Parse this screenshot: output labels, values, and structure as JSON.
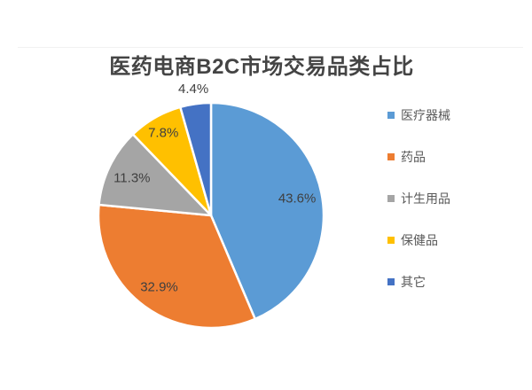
{
  "title": {
    "text": "医药电商B2C市场交易品类占比",
    "color": "#444444"
  },
  "chart_data": {
    "type": "pie",
    "title": "医药电商B2C市场交易品类占比",
    "legend_position": "right",
    "start_angle_deg": 0,
    "direction": "clockwise",
    "categories": [
      "医疗器械",
      "药品",
      "计生用品",
      "保健品",
      "其它"
    ],
    "values": [
      43.6,
      32.9,
      11.3,
      7.8,
      4.4
    ],
    "slices": [
      {
        "label": "医疗器械",
        "value": 43.6,
        "display": "43.6%",
        "color": "#5B9BD5"
      },
      {
        "label": "药品",
        "value": 32.9,
        "display": "32.9%",
        "color": "#ED7D31"
      },
      {
        "label": "计生用品",
        "value": 11.3,
        "display": "11.3%",
        "color": "#A5A5A5"
      },
      {
        "label": "保健品",
        "value": 7.8,
        "display": "7.8%",
        "color": "#FFC000"
      },
      {
        "label": "其它",
        "value": 4.4,
        "display": "4.4%",
        "color": "#4472C4"
      }
    ],
    "data_label_color": "#3f3f3f",
    "legend_text_color": "#595959",
    "separator_color": "#ffffff"
  }
}
